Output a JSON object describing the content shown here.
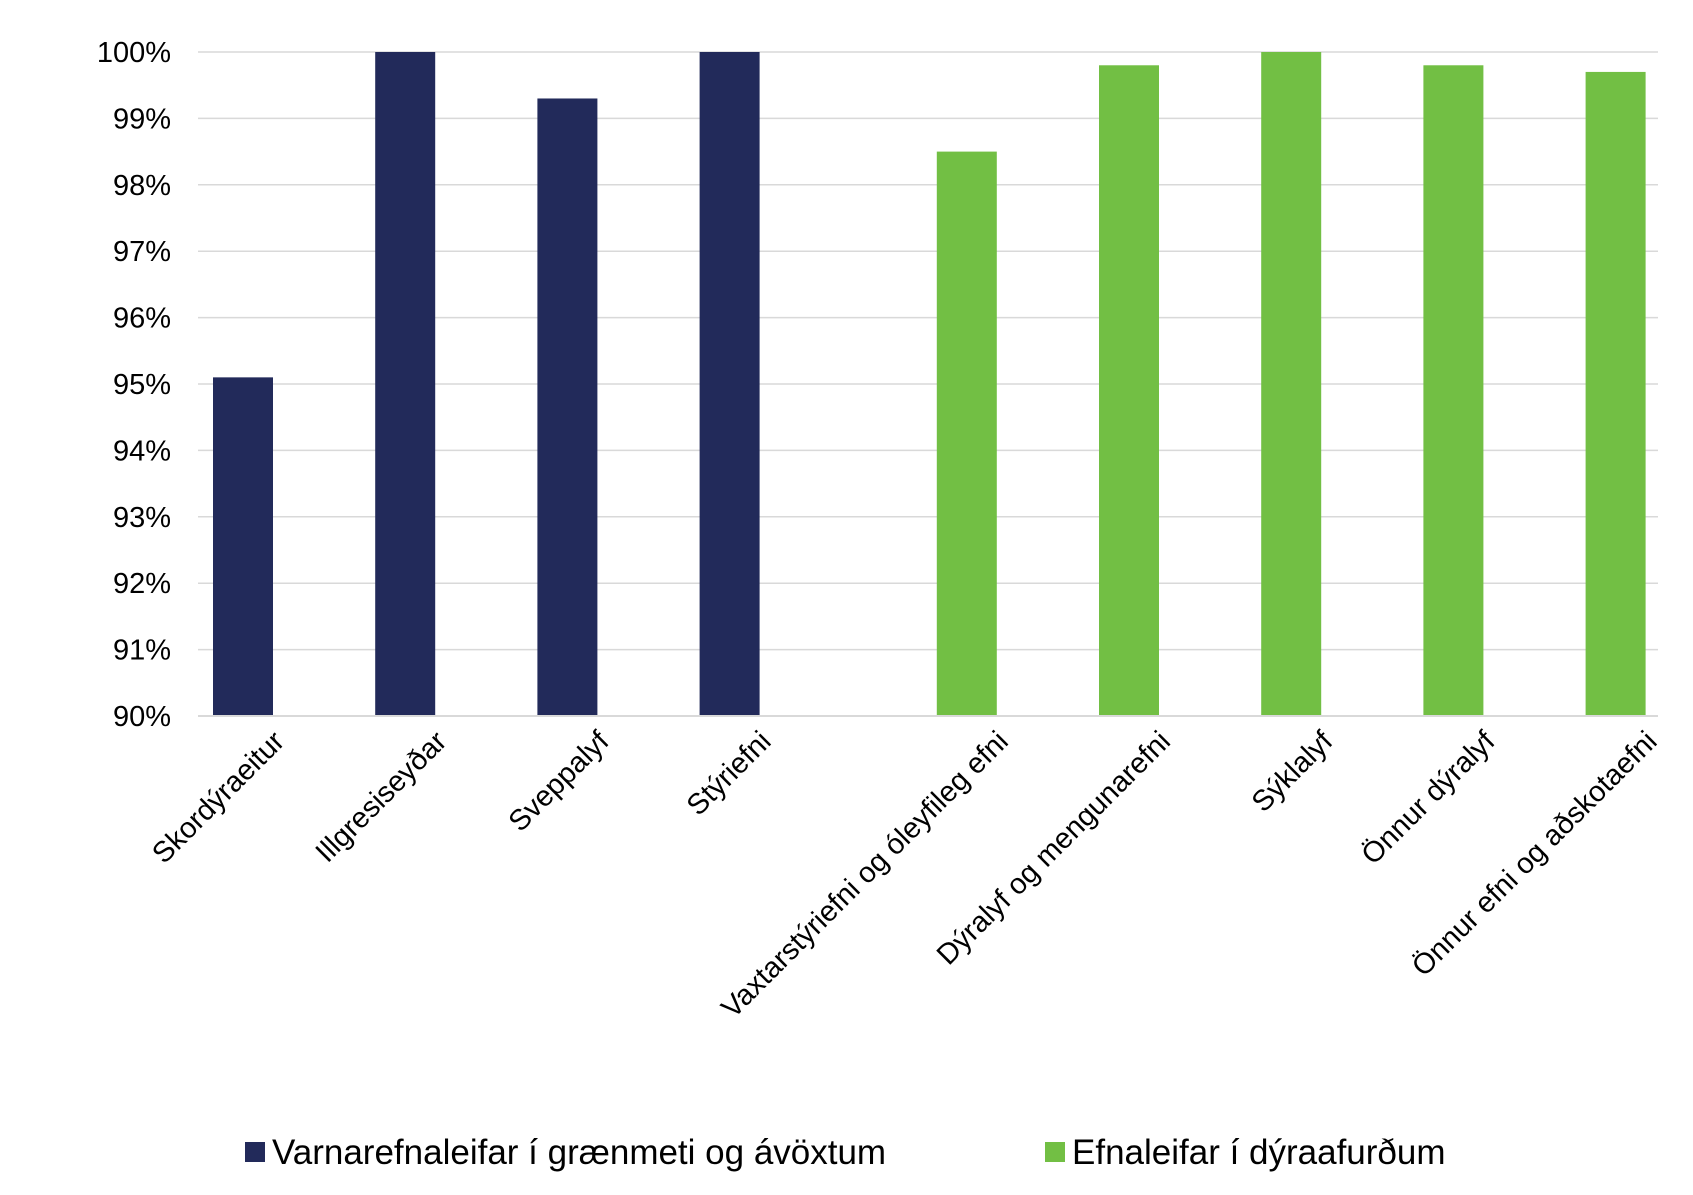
{
  "chart_data": {
    "type": "bar",
    "title": "",
    "xlabel": "",
    "ylabel": "",
    "ylim": [
      0.9,
      1.0
    ],
    "y_ticks": [
      "90%",
      "91%",
      "92%",
      "93%",
      "94%",
      "95%",
      "96%",
      "97%",
      "98%",
      "99%",
      "100%"
    ],
    "grid": true,
    "legend_position": "bottom",
    "categories": [
      "Skordýraeitur",
      "Illgresiseyðar",
      "Sveppalyf",
      "Stýriefni",
      "Vaxtarstýriefni og óleyfileg efni",
      "Dýralyf og mengunarefni",
      "Sýklalyf",
      "Önnur dýralyf",
      "Önnur efni og aðskotaefni"
    ],
    "series": [
      {
        "name": "Varnarefnaleifar í grænmeti og ávöxtum",
        "color": "#222a5a",
        "values": [
          0.951,
          1.0,
          0.993,
          1.0,
          null,
          null,
          null,
          null,
          null
        ]
      },
      {
        "name": "Efnaleifar í dýraafurðum",
        "color": "#72bf44",
        "values": [
          null,
          null,
          null,
          null,
          0.985,
          0.998,
          1.0,
          0.998,
          0.997
        ]
      }
    ]
  }
}
